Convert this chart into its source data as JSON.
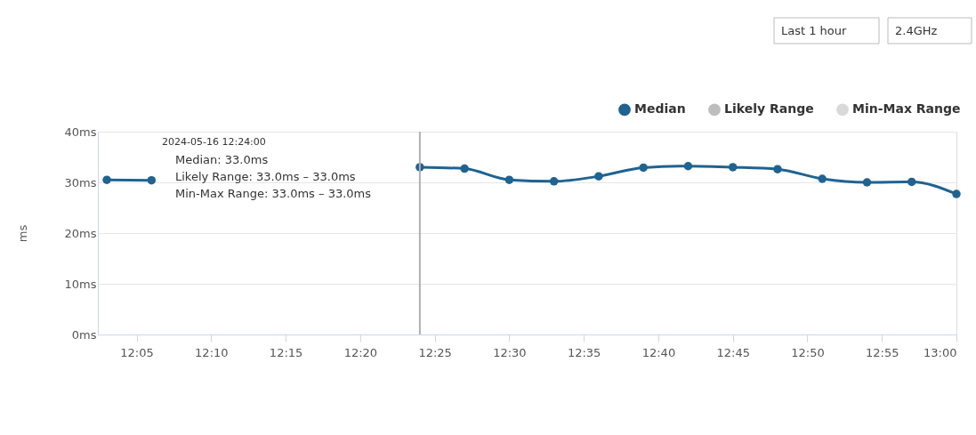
{
  "chart_data": {
    "type": "line",
    "ylabel": "ms",
    "x": [
      12.05,
      12.1,
      12.15,
      12.2,
      12.25,
      12.3,
      12.35,
      12.4,
      12.45,
      12.5,
      12.55,
      12.6,
      12.65,
      12.7,
      12.75,
      12.8,
      12.85,
      12.9,
      12.95,
      13.0
    ],
    "series": [
      {
        "name": "Median",
        "color": "#1f6391",
        "values": [
          30.5,
          30.4,
          null,
          null,
          null,
          null,
          null,
          33.0,
          32.7,
          30.5,
          30.2,
          31.2,
          32.9,
          33.2,
          33.0,
          32.6,
          30.7,
          30.0,
          30.1,
          27.7
        ]
      },
      {
        "name": "Likely Range",
        "color": "#bdbdbd",
        "values": [
          null,
          null,
          null,
          null,
          null,
          null,
          null,
          null,
          null,
          null,
          null,
          null,
          null,
          null,
          null,
          null,
          null,
          null,
          null,
          null
        ]
      },
      {
        "name": "Min-Max Range",
        "color": "#d9d9d9",
        "values": [
          null,
          null,
          null,
          null,
          null,
          null,
          null,
          null,
          null,
          null,
          null,
          null,
          null,
          null,
          null,
          null,
          null,
          null,
          null,
          null
        ]
      }
    ],
    "xlim": [
      12.04,
      13.0
    ],
    "xticks": [
      {
        "value": 12.083333,
        "label": "12:05"
      },
      {
        "value": 12.166667,
        "label": "12:10"
      },
      {
        "value": 12.25,
        "label": "12:15"
      },
      {
        "value": 12.333333,
        "label": "12:20"
      },
      {
        "value": 12.416667,
        "label": "12:25"
      },
      {
        "value": 12.5,
        "label": "12:30"
      },
      {
        "value": 12.583333,
        "label": "12:35"
      },
      {
        "value": 12.666667,
        "label": "12:40"
      },
      {
        "value": 12.75,
        "label": "12:45"
      },
      {
        "value": 12.833333,
        "label": "12:50"
      },
      {
        "value": 12.916667,
        "label": "12:55"
      },
      {
        "value": 13.0,
        "label": "13:00"
      }
    ],
    "ylim": [
      0,
      40
    ],
    "yticks": [
      {
        "value": 0,
        "label": "0ms"
      },
      {
        "value": 10,
        "label": "10ms"
      },
      {
        "value": 20,
        "label": "20ms"
      },
      {
        "value": 30,
        "label": "30ms"
      },
      {
        "value": 40,
        "label": "40ms"
      }
    ],
    "ref_lines": [
      {
        "axis": "x",
        "value": 12.4,
        "color": "#b0b0b0"
      }
    ],
    "annotations": [
      "Last 1 hour",
      "2.4GHz",
      "2024-05-16 12:24:00",
      "Median: 33.0ms",
      "Likely Range: 33.0ms – 33.0ms",
      "Min-Max Range: 33.0ms – 33.0ms"
    ],
    "grid": "y",
    "legend": "top right",
    "marker": "circle",
    "line_style": "solid"
  }
}
